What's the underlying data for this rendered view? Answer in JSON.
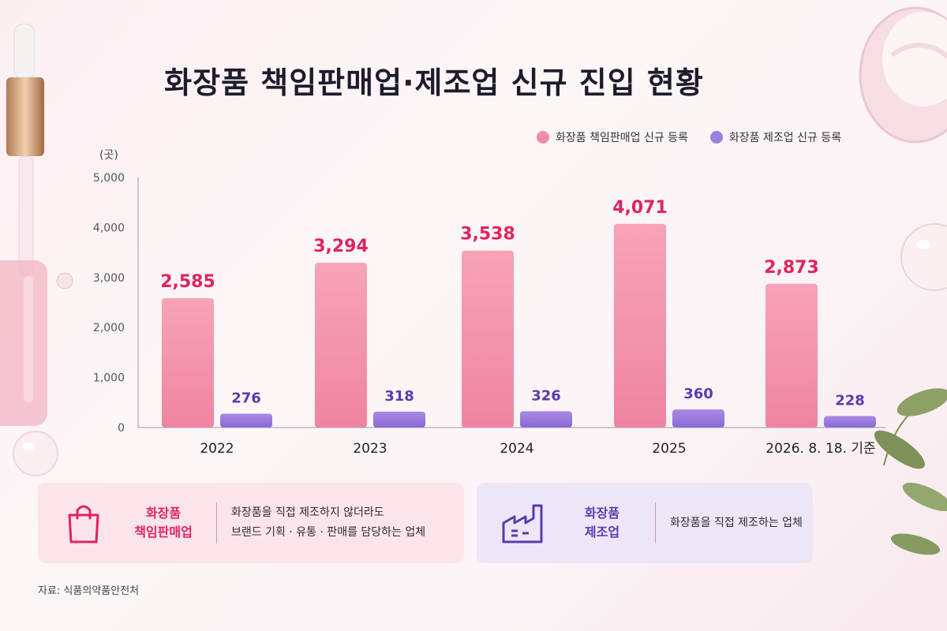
{
  "title": "화장품 책임판매업·제조업 신규 진입 현황",
  "legend": {
    "rp_label": "화장품 책임판매업 신규 등록",
    "mf_label": "화장품 제조업 신규 등록"
  },
  "colors": {
    "rp": "#f28da8",
    "rp_label": "#e0245e",
    "mf": "#9b7fdc",
    "mf_label": "#5a3bb0"
  },
  "chart_data": {
    "type": "bar",
    "unit": "(곳)",
    "categories": [
      "2022",
      "2023",
      "2024",
      "2025",
      "2026. 8. 18. 기준"
    ],
    "series": [
      {
        "name": "화장품 책임판매업 신규 등록",
        "values": [
          2585,
          3294,
          3538,
          4071,
          2873
        ],
        "labels": [
          "2,585",
          "3,294",
          "3,538",
          "4,071",
          "2,873"
        ]
      },
      {
        "name": "화장품 제조업 신규 등록",
        "values": [
          276,
          318,
          326,
          360,
          228
        ],
        "labels": [
          "276",
          "318",
          "326",
          "360",
          "228"
        ]
      }
    ],
    "yticks": [
      "5,000",
      "4,000",
      "3,000",
      "2,000",
      "1,000",
      "0"
    ],
    "ytick_values": [
      5000,
      4000,
      3000,
      2000,
      1000,
      0
    ],
    "ylim": [
      0,
      5000
    ],
    "grid": false,
    "legend_position": "top-right"
  },
  "cards": {
    "rp": {
      "icon": "shopping-bag-icon",
      "title_line1": "화장품",
      "title_line2": "책임판매업",
      "desc_line1": "화장품을 직접 제조하지 않더라도",
      "desc_line2": "브랜드 기획 · 유통 · 판매를 담당하는 업체"
    },
    "mf": {
      "icon": "factory-icon",
      "title_line1": "화장품",
      "title_line2": "제조업",
      "desc_line1": "화장품을 직접 제조하는 업체"
    }
  },
  "source": "자료: 식품의약품안전처"
}
